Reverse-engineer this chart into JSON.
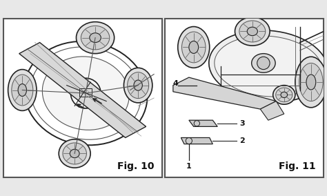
{
  "bg_color": "#e8e8e8",
  "border_color": "#555555",
  "fig10_label": "Fig. 10",
  "fig11_label": "Fig. 11",
  "label_fontsize": 10,
  "label_fontweight": "bold",
  "panel_bg": "#f0f0f0",
  "white_bg": "#ffffff",
  "line_color": "#333333",
  "dark_line": "#222222",
  "mid_line": "#555555",
  "light_line": "#888888"
}
